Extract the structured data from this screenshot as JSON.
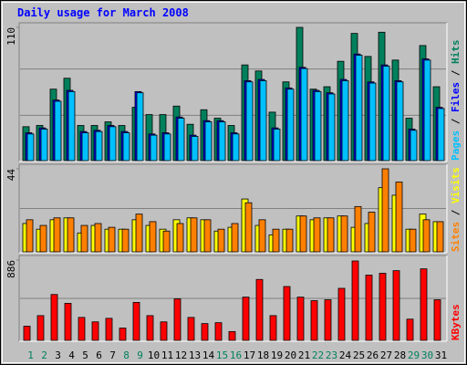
{
  "chart_data": {
    "type": "bar",
    "title": "Daily usage for March 2008",
    "categories": [
      "1",
      "2",
      "3",
      "4",
      "5",
      "6",
      "7",
      "8",
      "9",
      "10",
      "11",
      "12",
      "13",
      "14",
      "15",
      "16",
      "17",
      "18",
      "19",
      "20",
      "21",
      "22",
      "23",
      "24",
      "25",
      "26",
      "27",
      "28",
      "29",
      "30",
      "31"
    ],
    "category_colors": [
      "#00805c",
      "#00805c",
      "#000000",
      "#000000",
      "#000000",
      "#000000",
      "#000000",
      "#00805c",
      "#00805c",
      "#000000",
      "#000000",
      "#000000",
      "#000000",
      "#000000",
      "#00805c",
      "#00805c",
      "#000000",
      "#000000",
      "#000000",
      "#000000",
      "#000000",
      "#00805c",
      "#00805c",
      "#000000",
      "#000000",
      "#000000",
      "#000000",
      "#000000",
      "#00805c",
      "#00805c",
      "#000000"
    ],
    "legend_separator": " / ",
    "panels": [
      {
        "ylim": [
          0,
          110
        ],
        "yticks": [
          110
        ],
        "series": [
          {
            "name": "Hits",
            "color": "#00805c",
            "values": [
              28,
              29,
              59,
              68,
              29,
              29,
              32,
              29,
              44,
              38,
              38,
              45,
              30,
              42,
              35,
              29,
              79,
              74,
              40,
              65,
              110,
              59,
              61,
              82,
              105,
              86,
              106,
              83,
              35,
              95,
              61
            ]
          },
          {
            "name": "Files",
            "color": "#0000ff",
            "values": [
              23,
              27,
              50,
              58,
              24,
              25,
              29,
              24,
              57,
              22,
              23,
              36,
              21,
              33,
              33,
              23,
              66,
              67,
              27,
              60,
              77,
              58,
              56,
              67,
              88,
              65,
              79,
              66,
              26,
              84,
              44
            ]
          },
          {
            "name": "Pages",
            "color": "#00c0ff",
            "values": [
              22,
              26,
              49,
              57,
              23,
              24,
              28,
              23,
              56,
              21,
              22,
              35,
              20,
              32,
              32,
              22,
              65,
              66,
              26,
              59,
              76,
              57,
              55,
              66,
              87,
              64,
              78,
              65,
              25,
              83,
              43
            ]
          }
        ]
      },
      {
        "ylim": [
          0,
          44
        ],
        "yticks": [
          44
        ],
        "series": [
          {
            "name": "Visits",
            "color": "#ffff00",
            "values": [
              15,
              12,
              17,
              18,
              10,
              14,
              12,
              12,
              17,
              14,
              12,
              17,
              18,
              17,
              11,
              13,
              28,
              14,
              9,
              12,
              19,
              17,
              18,
              19,
              13,
              15,
              34,
              30,
              12,
              20,
              16
            ]
          },
          {
            "name": "Sites",
            "color": "#ff8000",
            "values": [
              17,
              14,
              18,
              18,
              14,
              15,
              13,
              12,
              20,
              16,
              11,
              15,
              18,
              17,
              12,
              15,
              26,
              17,
              12,
              12,
              19,
              18,
              18,
              19,
              24,
              21,
              44,
              37,
              12,
              17,
              16
            ]
          }
        ]
      },
      {
        "ylim": [
          0,
          886
        ],
        "yticks": [
          886
        ],
        "series": [
          {
            "name": "KBytes",
            "color": "#ff0000",
            "values": [
              156,
              273,
              506,
              409,
              253,
              204,
              243,
              136,
              419,
              273,
              204,
              458,
              253,
              185,
              195,
              97,
              477,
              672,
              273,
              594,
              477,
              438,
              448,
              574,
              876,
              720,
              740,
              769,
              234,
              789,
              448
            ]
          }
        ]
      }
    ]
  }
}
